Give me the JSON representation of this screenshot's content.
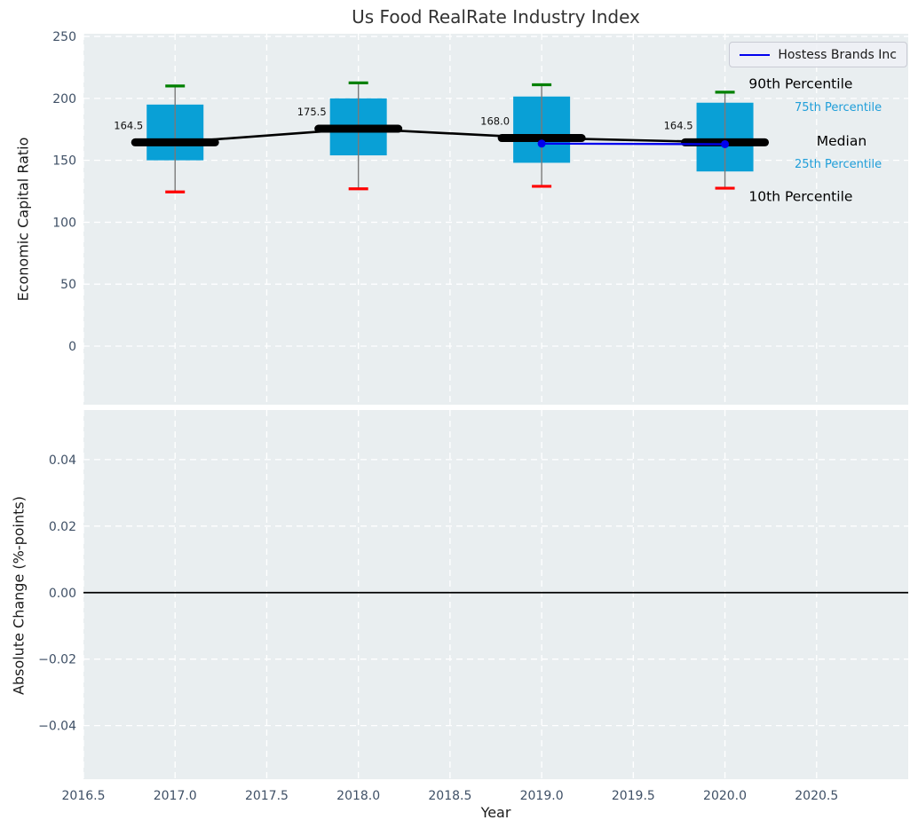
{
  "title": "Us Food RealRate Industry Index",
  "legend": {
    "label": "Hostess Brands Inc",
    "color": "#0000ee",
    "position": "upper right"
  },
  "colors": {
    "figure_bg": "#ffffff",
    "plot_bg": "#e9eef0",
    "grid": "#ffffff",
    "tick": "#3f5066",
    "title": "#333333",
    "axis_label": "#1a1a1a",
    "box_fill": "#09a0d6",
    "whisker": "#7a7a7a",
    "cap_top": "#008000",
    "cap_bottom": "#ff0000",
    "median": "#000000",
    "company_line": "#0000ee",
    "percentile_label_cyan": "#1f9ed9"
  },
  "chart_data": [
    {
      "type": "boxplot+line",
      "title": "Us Food RealRate Industry Index",
      "ylabel": "Economic Capital Ratio",
      "xlim": [
        2016.5,
        2021.0
      ],
      "ylim": [
        -47.3,
        252.2
      ],
      "yticks": [
        0,
        50,
        100,
        150,
        200,
        250
      ],
      "yticklabels": [
        "0",
        "50",
        "100",
        "150",
        "200",
        "250"
      ],
      "xticks": [
        2016.5,
        2017.0,
        2017.5,
        2018.0,
        2018.5,
        2019.0,
        2019.5,
        2020.0,
        2020.5
      ],
      "grid": "white dashed",
      "legend_position": "upper right",
      "boxes": [
        {
          "year": 2017,
          "p10": 124.5,
          "q1": 150.0,
          "median": 164.5,
          "q3": 195.0,
          "p90": 210.0,
          "label": "164.5"
        },
        {
          "year": 2018,
          "p10": 127.0,
          "q1": 154.0,
          "median": 175.5,
          "q3": 200.0,
          "p90": 212.5,
          "label": "175.5"
        },
        {
          "year": 2019,
          "p10": 129.0,
          "q1": 148.0,
          "median": 168.0,
          "q3": 201.5,
          "p90": 211.0,
          "label": "168.0"
        },
        {
          "year": 2020,
          "p10": 127.5,
          "q1": 141.0,
          "median": 164.5,
          "q3": 196.5,
          "p90": 205.0,
          "label": "164.5"
        }
      ],
      "series": [
        {
          "name": "Hostess Brands Inc",
          "x": [
            2019,
            2020
          ],
          "y": [
            163.5,
            163.0
          ]
        }
      ],
      "annotations": [
        {
          "text": "90th Percentile",
          "x": 2020.13,
          "y": 208,
          "color": "#000000",
          "size": 15.5
        },
        {
          "text": "75th Percentile",
          "x": 2020.38,
          "y": 190,
          "color": "#1f9ed9",
          "size": 13
        },
        {
          "text": "Median",
          "x": 2020.5,
          "y": 162,
          "color": "#000000",
          "size": 15.5
        },
        {
          "text": "25th Percentile",
          "x": 2020.38,
          "y": 144,
          "color": "#1f9ed9",
          "size": 13
        },
        {
          "text": "10th Percentile",
          "x": 2020.13,
          "y": 117,
          "color": "#000000",
          "size": 15.5
        }
      ]
    },
    {
      "type": "line",
      "ylabel": "Absolute Change (%-points)",
      "xlabel": "Year",
      "xlim": [
        2016.5,
        2021.0
      ],
      "ylim": [
        -0.0561,
        0.0549
      ],
      "yticks": [
        -0.04,
        -0.02,
        0.0,
        0.02,
        0.04
      ],
      "yticklabels": [
        "−0.04",
        "−0.02",
        "0.00",
        "0.02",
        "0.04"
      ],
      "xticks": [
        2016.5,
        2017.0,
        2017.5,
        2018.0,
        2018.5,
        2019.0,
        2019.5,
        2020.0,
        2020.5
      ],
      "xticklabels": [
        "2016.5",
        "2017.0",
        "2017.5",
        "2018.0",
        "2018.5",
        "2019.0",
        "2019.5",
        "2020.0",
        "2020.5"
      ],
      "zero_line": 0.0,
      "grid": "white dashed"
    }
  ]
}
